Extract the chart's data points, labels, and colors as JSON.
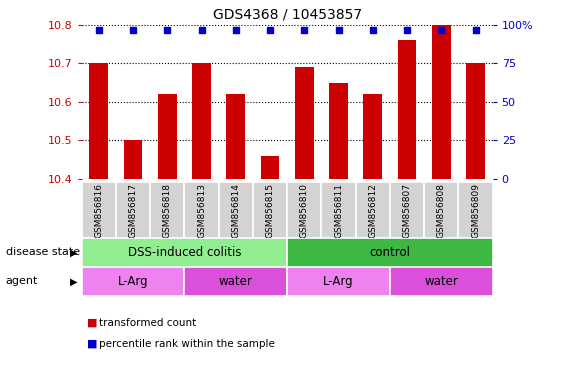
{
  "title": "GDS4368 / 10453857",
  "samples": [
    "GSM856816",
    "GSM856817",
    "GSM856818",
    "GSM856813",
    "GSM856814",
    "GSM856815",
    "GSM856810",
    "GSM856811",
    "GSM856812",
    "GSM856807",
    "GSM856808",
    "GSM856809"
  ],
  "red_values": [
    10.7,
    10.5,
    10.62,
    10.7,
    10.62,
    10.46,
    10.69,
    10.65,
    10.62,
    10.76,
    10.8,
    10.7
  ],
  "blue_percentiles": [
    97,
    97,
    97,
    97,
    97,
    97,
    97,
    97,
    97,
    97,
    97,
    97
  ],
  "ylim_left": [
    10.4,
    10.8
  ],
  "ylim_right": [
    0,
    100
  ],
  "yticks_left": [
    10.4,
    10.5,
    10.6,
    10.7,
    10.8
  ],
  "yticks_right": [
    0,
    25,
    50,
    75,
    100
  ],
  "disease_state_groups": [
    {
      "label": "DSS-induced colitis",
      "start": 0,
      "end": 6,
      "color": "#90EE90"
    },
    {
      "label": "control",
      "start": 6,
      "end": 12,
      "color": "#3CB843"
    }
  ],
  "agent_groups": [
    {
      "label": "L-Arg",
      "start": 0,
      "end": 3,
      "color": "#EE82EE"
    },
    {
      "label": "water",
      "start": 3,
      "end": 6,
      "color": "#DA50DA"
    },
    {
      "label": "L-Arg",
      "start": 6,
      "end": 9,
      "color": "#EE82EE"
    },
    {
      "label": "water",
      "start": 9,
      "end": 12,
      "color": "#DA50DA"
    }
  ],
  "bar_color": "#CC0000",
  "dot_color": "#0000CC",
  "bar_width": 0.55,
  "legend_labels": [
    "transformed count",
    "percentile rank within the sample"
  ],
  "legend_colors": [
    "#CC0000",
    "#0000CC"
  ],
  "left_axis_color": "#CC0000",
  "right_axis_color": "#0000CC",
  "xlim": [
    -0.5,
    11.5
  ]
}
